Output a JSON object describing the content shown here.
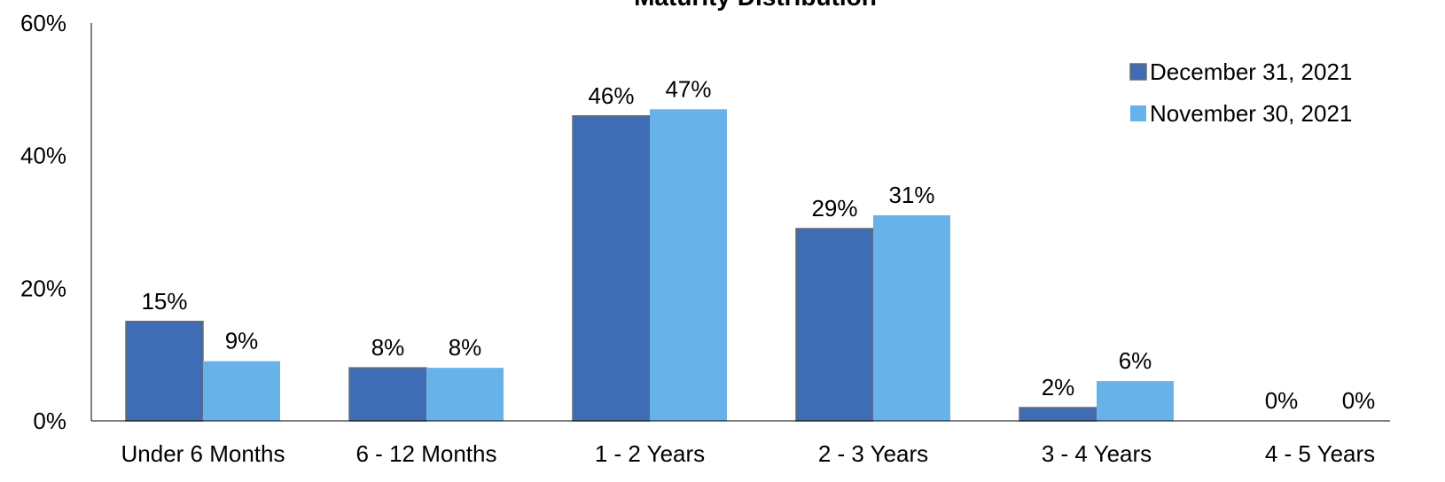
{
  "chart_data": {
    "type": "bar",
    "title": "Maturity Distribution",
    "categories": [
      "Under 6 Months",
      "6 - 12 Months",
      "1 - 2 Years",
      "2 - 3 Years",
      "3 - 4 Years",
      "4 - 5 Years"
    ],
    "series": [
      {
        "name": "December 31, 2021",
        "values": [
          15,
          8,
          46,
          29,
          2,
          0
        ],
        "labels": [
          "15%",
          "8%",
          "46%",
          "29%",
          "2%",
          "0%"
        ],
        "color": "#3E6DB5"
      },
      {
        "name": "November 30, 2021",
        "values": [
          9,
          8,
          47,
          31,
          6,
          0
        ],
        "labels": [
          "9%",
          "8%",
          "47%",
          "31%",
          "6%",
          "0%"
        ],
        "color": "#67B2E8"
      }
    ],
    "y_ticks": [
      "0%",
      "20%",
      "40%",
      "60%"
    ],
    "ylim": [
      0,
      60
    ],
    "grid": false,
    "legend_position": "top-right"
  }
}
